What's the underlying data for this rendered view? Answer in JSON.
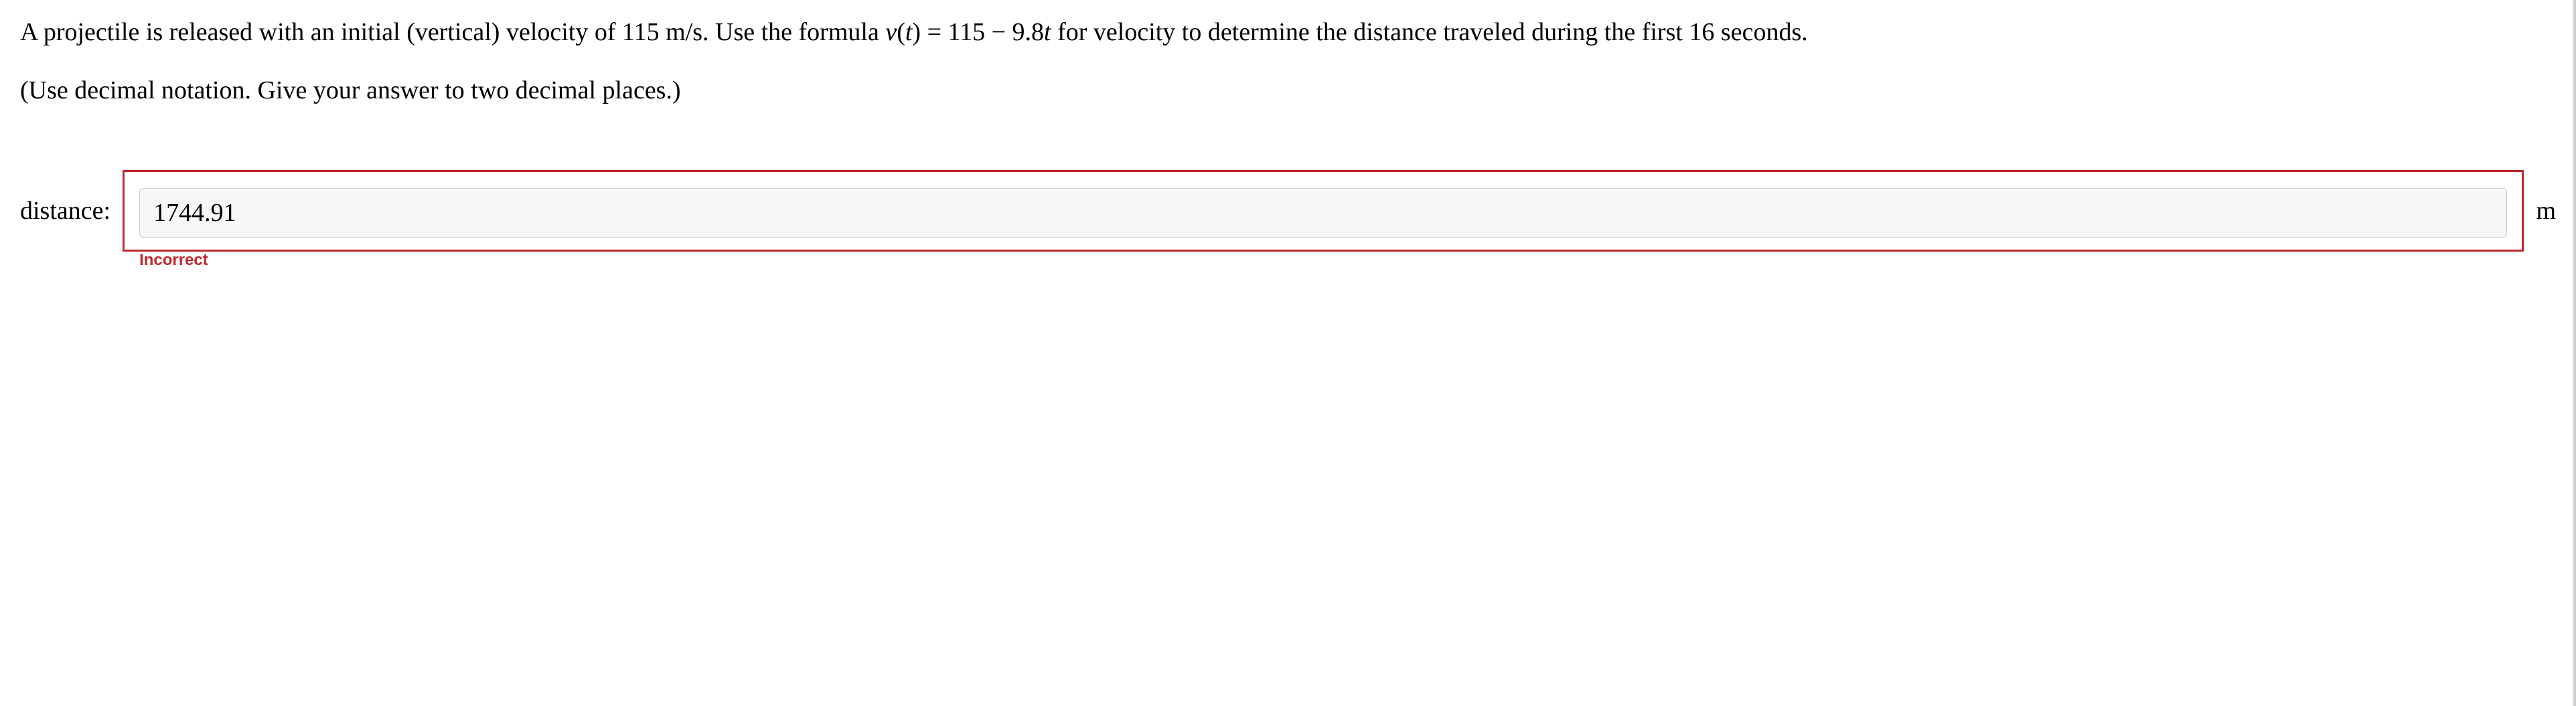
{
  "question": {
    "line1_part1": "A projectile is released with an initial (vertical) velocity of 115 m/s. Use the formula ",
    "formula_v": "v",
    "formula_paren_open": "(",
    "formula_t1": "t",
    "formula_paren_close_eq": ") = 115 − 9.8",
    "formula_t2": "t",
    "line1_part2": " for velocity to determine the distance traveled during the first 16 seconds.",
    "instruction": "(Use decimal notation. Give your answer to two decimal places.)"
  },
  "answer": {
    "label": "distance:",
    "value": "1744.91",
    "unit": "m",
    "feedback": "Incorrect"
  },
  "colors": {
    "error_border": "#c1272d",
    "error_text": "#c1272d",
    "input_bg": "#f7f7f7",
    "input_border": "#cccccc",
    "page_bg": "#ffffff",
    "text": "#000000"
  }
}
